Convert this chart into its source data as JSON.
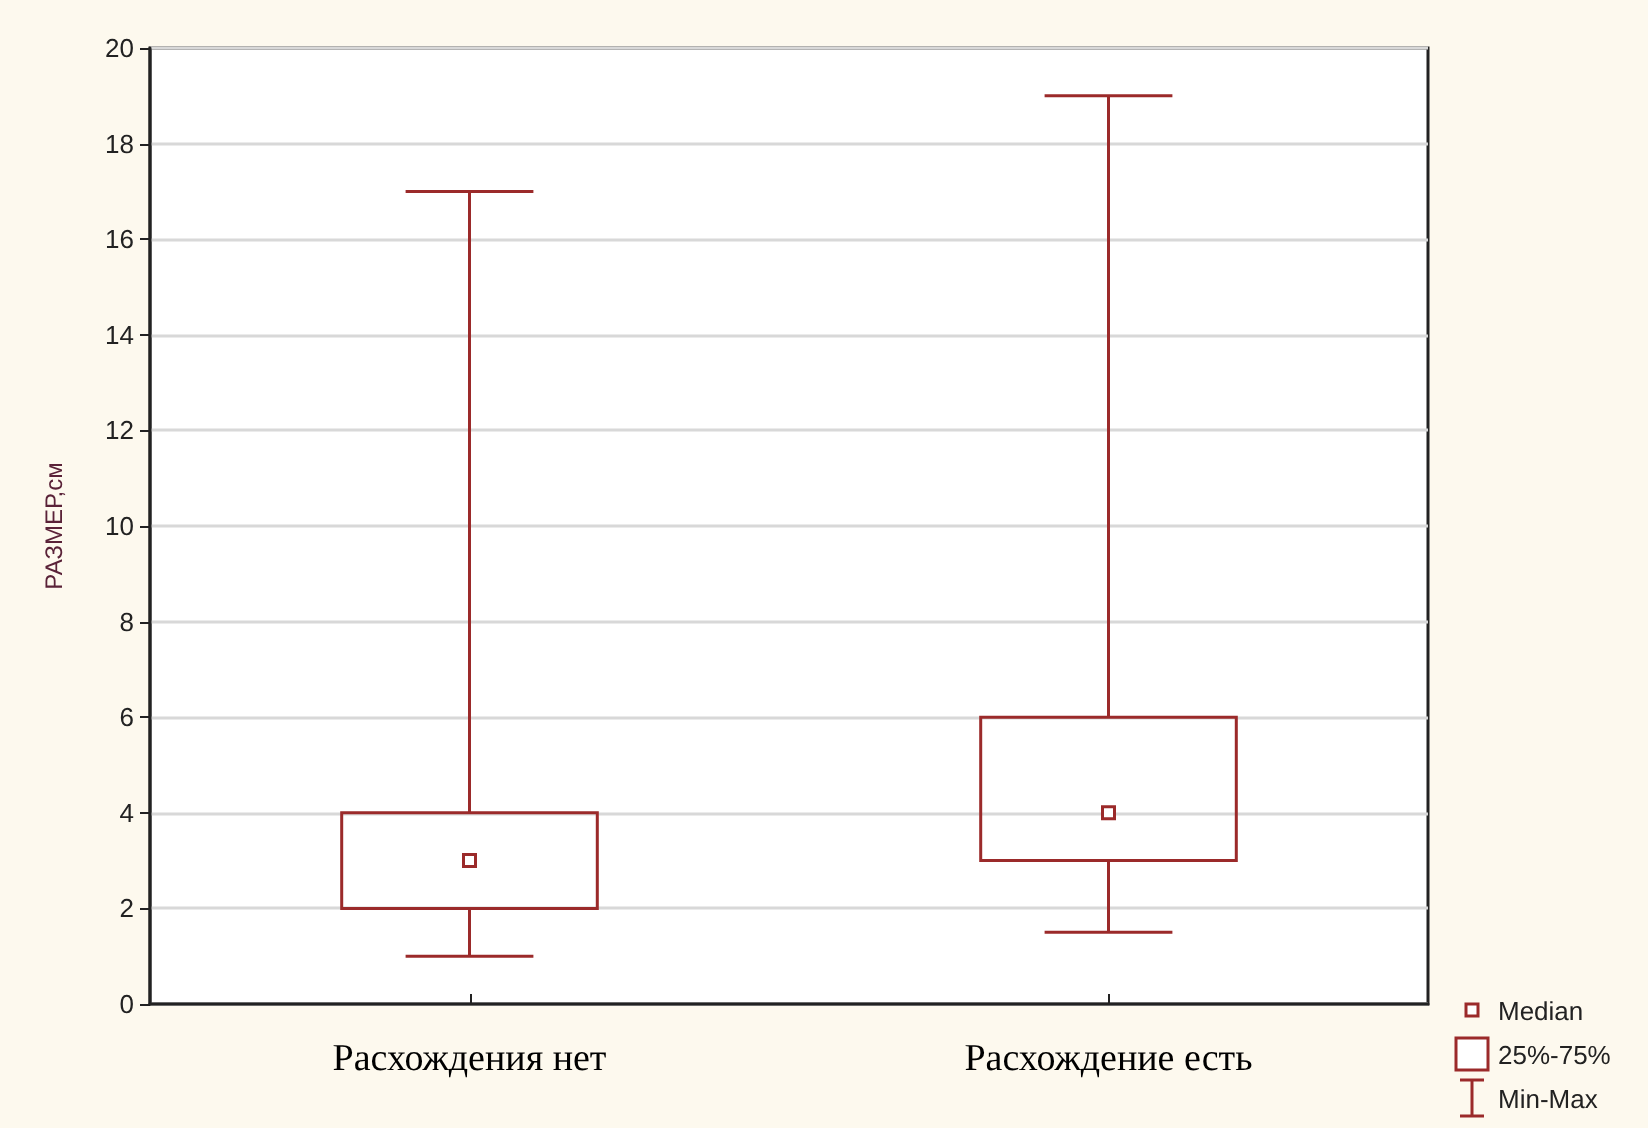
{
  "chart_data": {
    "type": "box",
    "ylabel": "РАЗМЕР,см",
    "categories": [
      "Расхождения нет",
      "Расхождение есть"
    ],
    "series": [
      {
        "color": "#9b2a2a",
        "boxes": [
          {
            "low": 1,
            "q1": 2,
            "median": 3,
            "q3": 4,
            "high": 17
          },
          {
            "low": 1.5,
            "q1": 3,
            "median": 4,
            "q3": 6,
            "high": 19
          }
        ]
      }
    ],
    "ylim": [
      0,
      20
    ],
    "yticks": [
      0,
      2,
      4,
      6,
      8,
      10,
      12,
      14,
      16,
      18,
      20
    ],
    "grid": "y",
    "marker": "square",
    "annotations": [
      "Median",
      "25%-75%",
      "Min-Max"
    ]
  }
}
